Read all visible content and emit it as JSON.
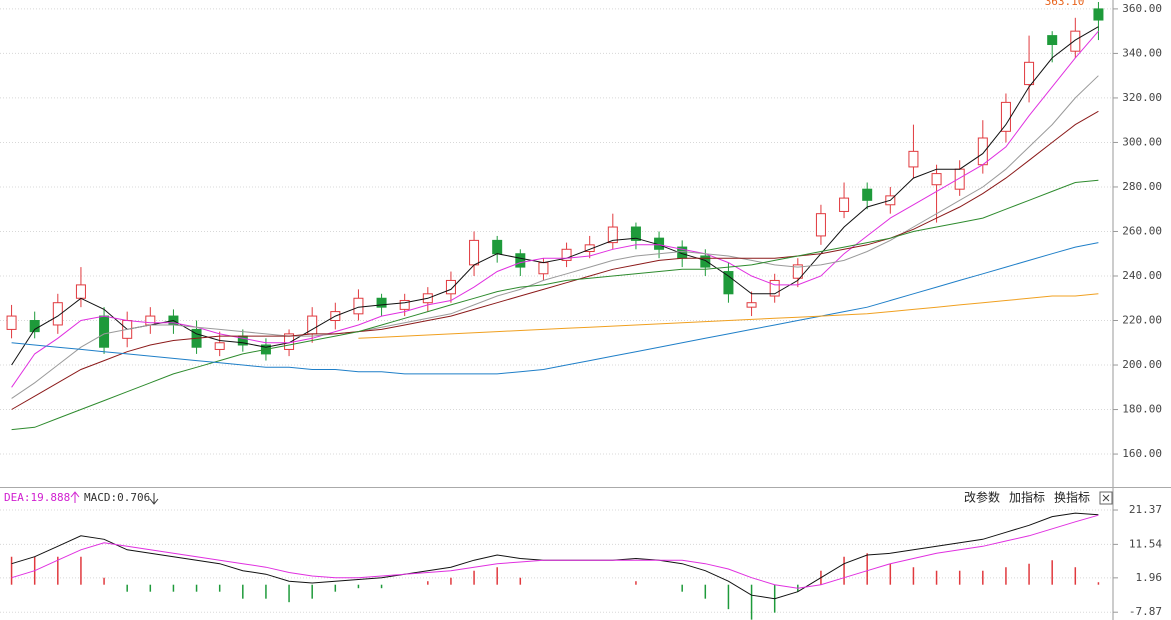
{
  "chart_data": [
    {
      "type": "candlestick",
      "up_color": "#e0393e",
      "down_color": "#1e9a3a",
      "ylim": [
        145.2,
        364
      ],
      "yticks": [
        {
          "value": 160,
          "label": "160.00"
        },
        {
          "value": 180,
          "label": "180.00"
        },
        {
          "value": 200,
          "label": "200.00"
        },
        {
          "value": 220,
          "label": "220.00"
        },
        {
          "value": 240,
          "label": "240.00"
        },
        {
          "value": 260,
          "label": "260.00"
        },
        {
          "value": 280,
          "label": "280.00"
        },
        {
          "value": 300,
          "label": "300.00"
        },
        {
          "value": 320,
          "label": "320.00"
        },
        {
          "value": 340,
          "label": "340.00"
        },
        {
          "value": 360,
          "label": "360.00"
        }
      ],
      "grid": true,
      "max_label": "363.10",
      "max_color": "#e8641e",
      "open": [
        216,
        220,
        218,
        230,
        222,
        212,
        218,
        222,
        216,
        207,
        213,
        209,
        207,
        214,
        220,
        223,
        230,
        225,
        228,
        232,
        245,
        256,
        250,
        241,
        247,
        251,
        255,
        262,
        257,
        253,
        249,
        242,
        226,
        231,
        239,
        258,
        269,
        279,
        272,
        289,
        281,
        279,
        290,
        305,
        326,
        348,
        341,
        360
      ],
      "high": [
        227,
        224,
        232,
        244,
        226,
        224,
        226,
        225,
        220,
        215,
        216,
        212,
        216,
        226,
        228,
        234,
        232,
        232,
        235,
        242,
        260,
        258,
        252,
        248,
        255,
        258,
        268,
        264,
        260,
        256,
        252,
        246,
        233,
        241,
        248,
        272,
        282,
        282,
        280,
        308,
        290,
        292,
        310,
        322,
        348,
        350,
        356,
        363.1
      ],
      "low": [
        212,
        212,
        214,
        226,
        205,
        208,
        214,
        214,
        205,
        204,
        206,
        202,
        204,
        210,
        216,
        220,
        222,
        222,
        224,
        228,
        240,
        246,
        240,
        238,
        244,
        248,
        252,
        252,
        248,
        244,
        240,
        228,
        222,
        228,
        235,
        254,
        266,
        270,
        268,
        284,
        264,
        276,
        286,
        300,
        318,
        336,
        338,
        346
      ],
      "close": [
        222,
        215,
        228,
        236,
        208,
        220,
        222,
        218,
        208,
        210,
        209,
        205,
        214,
        222,
        224,
        230,
        226,
        229,
        232,
        238,
        256,
        250,
        244,
        246,
        252,
        254,
        262,
        256,
        252,
        248,
        244,
        232,
        228,
        238,
        245,
        268,
        275,
        274,
        276,
        296,
        286,
        288,
        302,
        318,
        336,
        344,
        350,
        355
      ],
      "series": [
        {
          "color": "#111111",
          "values": [
            200,
            216,
            222,
            230,
            225,
            216,
            218,
            220,
            214,
            211,
            210,
            208,
            210,
            216,
            222,
            226,
            227,
            228,
            230,
            234,
            245,
            250,
            248,
            246,
            248,
            252,
            256,
            257,
            254,
            250,
            247,
            240,
            232,
            232,
            238,
            250,
            262,
            271,
            274,
            284,
            288,
            288,
            295,
            308,
            325,
            338,
            346,
            352
          ]
        },
        {
          "color": "#e030e0",
          "values": [
            190,
            205,
            212,
            220,
            222,
            220,
            219,
            219,
            217,
            214,
            212,
            210,
            210,
            212,
            215,
            218,
            222,
            224,
            227,
            229,
            235,
            242,
            246,
            248,
            248,
            249,
            252,
            254,
            254,
            252,
            250,
            246,
            240,
            236,
            236,
            240,
            250,
            258,
            266,
            272,
            278,
            284,
            290,
            298,
            312,
            325,
            338,
            350
          ]
        },
        {
          "color": "#9a9a9a",
          "values": [
            185,
            192,
            200,
            208,
            214,
            216,
            218,
            218,
            217,
            216,
            215,
            214,
            213,
            213,
            214,
            215,
            217,
            219,
            221,
            223,
            227,
            231,
            234,
            238,
            241,
            244,
            247,
            249,
            250,
            251,
            250,
            249,
            247,
            245,
            244,
            245,
            247,
            251,
            256,
            262,
            268,
            274,
            280,
            288,
            298,
            308,
            320,
            330
          ]
        },
        {
          "color": "#8b1a1a",
          "values": [
            180,
            186,
            192,
            198,
            202,
            206,
            209,
            211,
            212,
            213,
            213,
            213,
            213,
            214,
            214,
            215,
            216,
            218,
            220,
            222,
            225,
            228,
            231,
            234,
            237,
            240,
            243,
            245,
            247,
            248,
            248,
            248,
            248,
            248,
            249,
            250,
            252,
            254,
            257,
            261,
            266,
            271,
            277,
            284,
            292,
            300,
            308,
            314
          ]
        },
        {
          "color": "#2e8b2e",
          "values": [
            171,
            172,
            176,
            180,
            184,
            188,
            192,
            196,
            199,
            202,
            205,
            207,
            209,
            211,
            213,
            215,
            218,
            221,
            224,
            227,
            230,
            233,
            235,
            236,
            238,
            239,
            240,
            241,
            242,
            243,
            243,
            244,
            245,
            247,
            249,
            251,
            253,
            255,
            257,
            260,
            262,
            264,
            266,
            270,
            274,
            278,
            282,
            283
          ]
        },
        {
          "color": "#1f7fc8",
          "values": [
            210,
            209,
            208,
            207,
            206,
            205,
            204,
            203,
            202,
            201,
            200,
            199,
            199,
            198,
            198,
            197,
            197,
            196,
            196,
            196,
            196,
            196,
            197,
            198,
            200,
            202,
            204,
            206,
            208,
            210,
            212,
            214,
            216,
            218,
            220,
            222,
            224,
            226,
            229,
            232,
            235,
            238,
            241,
            244,
            247,
            250,
            253,
            255
          ]
        },
        {
          "color": "#f0a020",
          "values": [
            null,
            null,
            null,
            null,
            null,
            null,
            null,
            null,
            null,
            null,
            null,
            null,
            null,
            null,
            null,
            212,
            212.5,
            213,
            213.5,
            214,
            214.5,
            215,
            215.5,
            216,
            216.5,
            217,
            217.5,
            218,
            218.5,
            219,
            219.5,
            220,
            220.5,
            221,
            221.5,
            222,
            222.5,
            223,
            224,
            225,
            226,
            227,
            228,
            229,
            230,
            231,
            231,
            232
          ]
        }
      ]
    },
    {
      "type": "macd",
      "ylim": [
        -10.1,
        27.1
      ],
      "yticks": [
        21.37,
        11.54,
        1.96,
        -7.87
      ],
      "grid": true,
      "dea_label": "DEA:19.888",
      "dea_label_color": "#d020d0",
      "macd_label": "MACD:0.706",
      "buttons": [
        "改参数",
        "加指标",
        "换指标"
      ],
      "up_color": "#e0393e",
      "down_color": "#1e9a3a",
      "histogram": [
        8,
        8,
        8,
        8,
        2,
        -2,
        -2,
        -2,
        -2,
        -2,
        -4,
        -4,
        -5,
        -4,
        -2,
        -1,
        -1,
        0,
        1,
        2,
        4,
        5,
        2,
        0,
        0,
        0,
        0,
        1,
        0,
        -2,
        -4,
        -7,
        -10,
        -8,
        -2,
        4,
        8,
        9,
        6,
        5,
        4,
        4,
        4,
        5,
        6,
        7,
        5,
        0.706
      ],
      "series": [
        {
          "color": "#111111",
          "values": [
            6,
            8,
            11,
            14,
            13,
            10,
            9,
            8,
            7,
            6,
            4,
            3,
            1,
            0.5,
            1,
            1.5,
            2,
            3,
            4,
            5,
            7,
            8.5,
            7.5,
            7,
            7,
            7,
            7,
            7.5,
            7,
            6,
            4,
            1,
            -3,
            -4,
            -2,
            2,
            6,
            8.5,
            9,
            10,
            11,
            12,
            13,
            15,
            17,
            19.5,
            20.5,
            20
          ]
        },
        {
          "color": "#e030e0",
          "values": [
            2,
            4,
            7,
            10,
            12,
            11,
            10,
            9,
            8,
            7,
            6,
            5,
            3.5,
            2.5,
            2,
            2,
            2.5,
            3,
            3.5,
            4,
            5,
            6,
            6.5,
            7,
            7,
            7,
            7,
            7,
            7,
            7,
            6,
            4.5,
            2,
            0,
            -1,
            0,
            2,
            4,
            6,
            7.5,
            9,
            10,
            11,
            12.5,
            14,
            16,
            18,
            19.9
          ]
        }
      ]
    }
  ]
}
